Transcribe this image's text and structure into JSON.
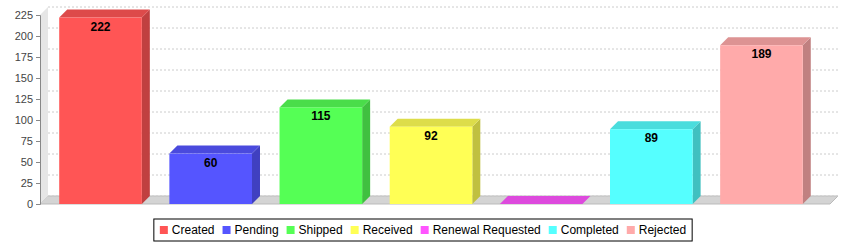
{
  "chart_data": {
    "type": "bar",
    "categories": [
      "Created",
      "Pending",
      "Shipped",
      "Received",
      "Renewal Requested",
      "Completed",
      "Rejected"
    ],
    "values": [
      222,
      60,
      115,
      92,
      0,
      89,
      189
    ],
    "value_labels": [
      "222",
      "60",
      "115",
      "92",
      null,
      "89",
      "189"
    ],
    "colors": [
      "#ff5555",
      "#5555ff",
      "#55ff55",
      "#ffff55",
      "#ff55ff",
      "#55ffff",
      "#ffaaaa"
    ],
    "ylim": [
      0,
      225
    ],
    "yticks": [
      0,
      25,
      50,
      75,
      100,
      125,
      150,
      175,
      200,
      225
    ],
    "grid": true,
    "data_labels": true,
    "legend": "bottom"
  }
}
